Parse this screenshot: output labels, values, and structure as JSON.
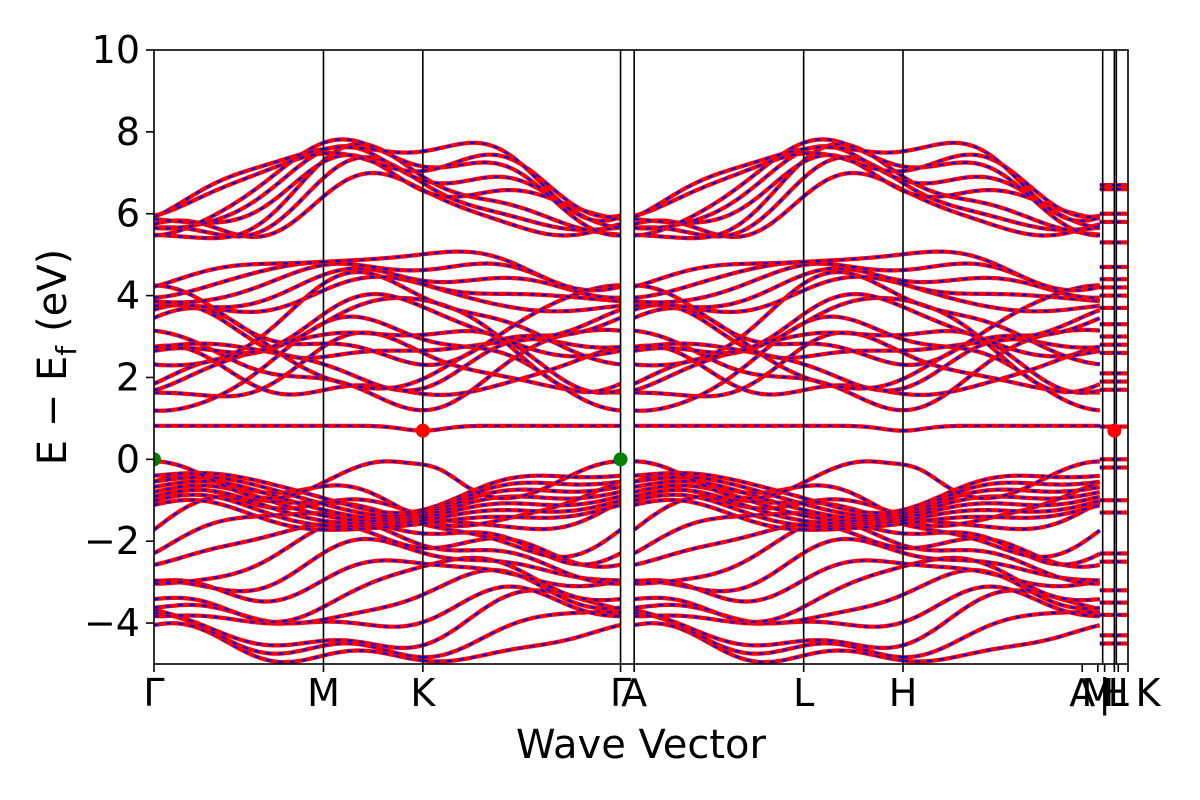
{
  "chart_data": {
    "type": "line",
    "title": "",
    "xlabel": "Wave Vector",
    "ylabel": "E − E",
    "ylabel_subscript": "f",
    "ylabel_unit": "(eV)",
    "ylim": [
      -5,
      10
    ],
    "yticks": [
      -4,
      -2,
      0,
      2,
      4,
      6,
      8,
      10
    ],
    "ytick_labels": [
      "−4",
      "−2",
      "0",
      "2",
      "4",
      "6",
      "8",
      "10"
    ],
    "xlim": [
      0,
      1
    ],
    "kpoints": [
      {
        "label": "Γ",
        "x": 0.0
      },
      {
        "label": "M",
        "x": 0.174
      },
      {
        "label": "K",
        "x": 0.276
      },
      {
        "label": "Γ",
        "x": 0.479
      },
      {
        "label": "A",
        "x": 0.493
      },
      {
        "label": "L",
        "x": 0.667
      },
      {
        "label": "H",
        "x": 0.769
      },
      {
        "label": "A",
        "x": 0.971
      },
      {
        "label": "|",
        "x": 0.974
      },
      {
        "label": "L",
        "x": 0.986
      },
      {
        "label": "|",
        "x": 0.988
      },
      {
        "label": "M",
        "x": 0.976
      },
      {
        "label": "|",
        "x": 0.99
      },
      {
        "label": "H",
        "x": 0.996
      },
      {
        "label": "K",
        "x": 1.0
      }
    ],
    "visible_kpath_labels": [
      "Γ",
      "M",
      "K",
      "ΓA",
      "L",
      "H",
      "A|L",
      "M|H",
      "K"
    ],
    "series": [
      {
        "color": "#ff0000",
        "style": "solid"
      },
      {
        "color": "#0000ff",
        "style": "dashed"
      }
    ],
    "fermi_level_eV": 0,
    "vbm": {
      "color": "#008000",
      "points": [
        {
          "x": 0.0,
          "y": 0.0
        },
        {
          "x": 0.479,
          "y": 0.0
        }
      ]
    },
    "cbm": {
      "color": "#ff0000",
      "points": [
        {
          "x": 0.276,
          "y": 0.7
        },
        {
          "x": 0.986,
          "y": 0.7
        }
      ]
    },
    "flat_band_eV": 0.82
  }
}
